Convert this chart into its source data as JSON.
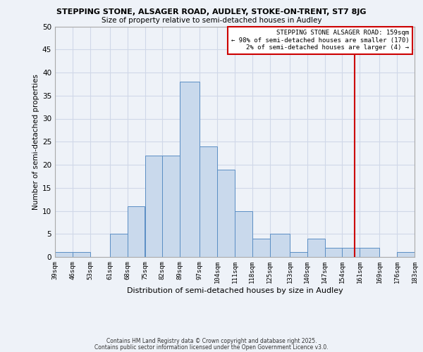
{
  "title1": "STEPPING STONE, ALSAGER ROAD, AUDLEY, STOKE-ON-TRENT, ST7 8JG",
  "title2": "Size of property relative to semi-detached houses in Audley",
  "xlabel": "Distribution of semi-detached houses by size in Audley",
  "ylabel": "Number of semi-detached properties",
  "bin_edges": [
    39,
    46,
    53,
    61,
    68,
    75,
    82,
    89,
    97,
    104,
    111,
    118,
    125,
    133,
    140,
    147,
    154,
    161,
    169,
    176,
    183
  ],
  "bar_heights": [
    1,
    1,
    0,
    5,
    11,
    22,
    22,
    38,
    24,
    19,
    10,
    4,
    5,
    1,
    4,
    2,
    2,
    2,
    0,
    1
  ],
  "bar_color": "#c9d9ec",
  "bar_edge_color": "#5b8ec4",
  "grid_color": "#d0d8e8",
  "bg_color": "#eef2f8",
  "vline_x": 159,
  "vline_color": "#cc0000",
  "annotation_title": "STEPPING STONE ALSAGER ROAD: 159sqm",
  "annotation_line2": "← 98% of semi-detached houses are smaller (170)",
  "annotation_line3": "2% of semi-detached houses are larger (4) →",
  "annotation_box_color": "#cc0000",
  "annotation_bg": "#ffffff",
  "ylim": [
    0,
    50
  ],
  "yticks": [
    0,
    5,
    10,
    15,
    20,
    25,
    30,
    35,
    40,
    45,
    50
  ],
  "tick_labels": [
    "39sqm",
    "46sqm",
    "53sqm",
    "61sqm",
    "68sqm",
    "75sqm",
    "82sqm",
    "89sqm",
    "97sqm",
    "104sqm",
    "111sqm",
    "118sqm",
    "125sqm",
    "133sqm",
    "140sqm",
    "147sqm",
    "154sqm",
    "161sqm",
    "169sqm",
    "176sqm",
    "183sqm"
  ],
  "footnote1": "Contains HM Land Registry data © Crown copyright and database right 2025.",
  "footnote2": "Contains public sector information licensed under the Open Government Licence v3.0."
}
